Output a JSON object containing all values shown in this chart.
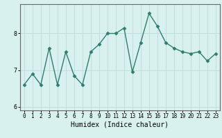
{
  "x": [
    0,
    1,
    2,
    3,
    4,
    5,
    6,
    7,
    8,
    9,
    10,
    11,
    12,
    13,
    14,
    15,
    16,
    17,
    18,
    19,
    20,
    21,
    22,
    23
  ],
  "y": [
    6.6,
    6.9,
    6.6,
    7.6,
    6.6,
    7.5,
    6.85,
    6.6,
    7.5,
    7.7,
    8.0,
    8.0,
    8.15,
    6.95,
    7.75,
    8.55,
    8.2,
    7.75,
    7.6,
    7.5,
    7.45,
    7.5,
    7.25,
    7.45
  ],
  "line_color": "#2e7d6e",
  "marker": "D",
  "markersize": 2.5,
  "linewidth": 1.0,
  "xlabel": "Humidex (Indice chaleur)",
  "ylabel": "",
  "xlim": [
    -0.5,
    23.5
  ],
  "ylim": [
    5.9,
    8.8
  ],
  "yticks": [
    6,
    7,
    8
  ],
  "xticks": [
    0,
    1,
    2,
    3,
    4,
    5,
    6,
    7,
    8,
    9,
    10,
    11,
    12,
    13,
    14,
    15,
    16,
    17,
    18,
    19,
    20,
    21,
    22,
    23
  ],
  "bg_color": "#d8f0ee",
  "grid_color": "#c0dede",
  "xlabel_fontsize": 7,
  "tick_fontsize": 5.5
}
